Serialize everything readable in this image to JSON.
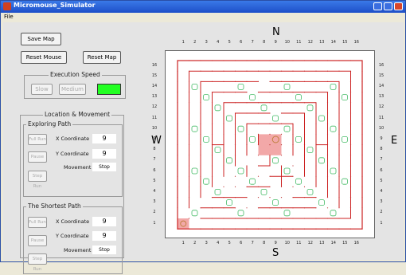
{
  "window": {
    "title": "Micromouse_Simulator"
  },
  "menu": {
    "file": "File"
  },
  "buttons": {
    "save_map": "Save Map",
    "reset_mouse": "Reset Mouse",
    "reset_map": "Reset Map"
  },
  "execution_speed": {
    "title": "Execution Speed",
    "slow": "Slow",
    "medium": "Medium",
    "fast": "",
    "active_color": "#22ff22"
  },
  "location_movement": {
    "title": "Location & Movement",
    "exploring": {
      "title": "Exploring Path",
      "buttons": [
        "Full Run",
        "Pause",
        "Step Run"
      ],
      "x_label": "X Coordinate",
      "x_value": "9",
      "y_label": "Y Coordinate",
      "y_value": "9",
      "movement_label": "Movement",
      "movement_value": "Stop"
    },
    "shortest": {
      "title": "The Shortest Path",
      "buttons": [
        "Full Run",
        "Pause",
        "Step Run"
      ],
      "x_label": "X Coordinate",
      "x_value": "9",
      "y_label": "Y Coordinate",
      "y_value": "9",
      "movement_label": "Movement",
      "movement_value": "Stop"
    }
  },
  "maze": {
    "compass": {
      "north": "N",
      "south": "S",
      "west": "W",
      "east": "E"
    },
    "columns": [
      "1",
      "2",
      "3",
      "4",
      "5",
      "6",
      "7",
      "8",
      "9",
      "10",
      "11",
      "12",
      "13",
      "14",
      "15",
      "16"
    ],
    "rows": [
      "16",
      "15",
      "14",
      "13",
      "12",
      "11",
      "10",
      "9",
      "8",
      "7",
      "6",
      "5",
      "4",
      "3",
      "2",
      "1"
    ],
    "wall_color": "#cc2222",
    "marker_color": "#44bb66",
    "goal_color": "#f2a8a8",
    "mouse_cell": {
      "x": 9,
      "y": 9
    },
    "start_cell": {
      "x": 1,
      "y": 1
    }
  }
}
